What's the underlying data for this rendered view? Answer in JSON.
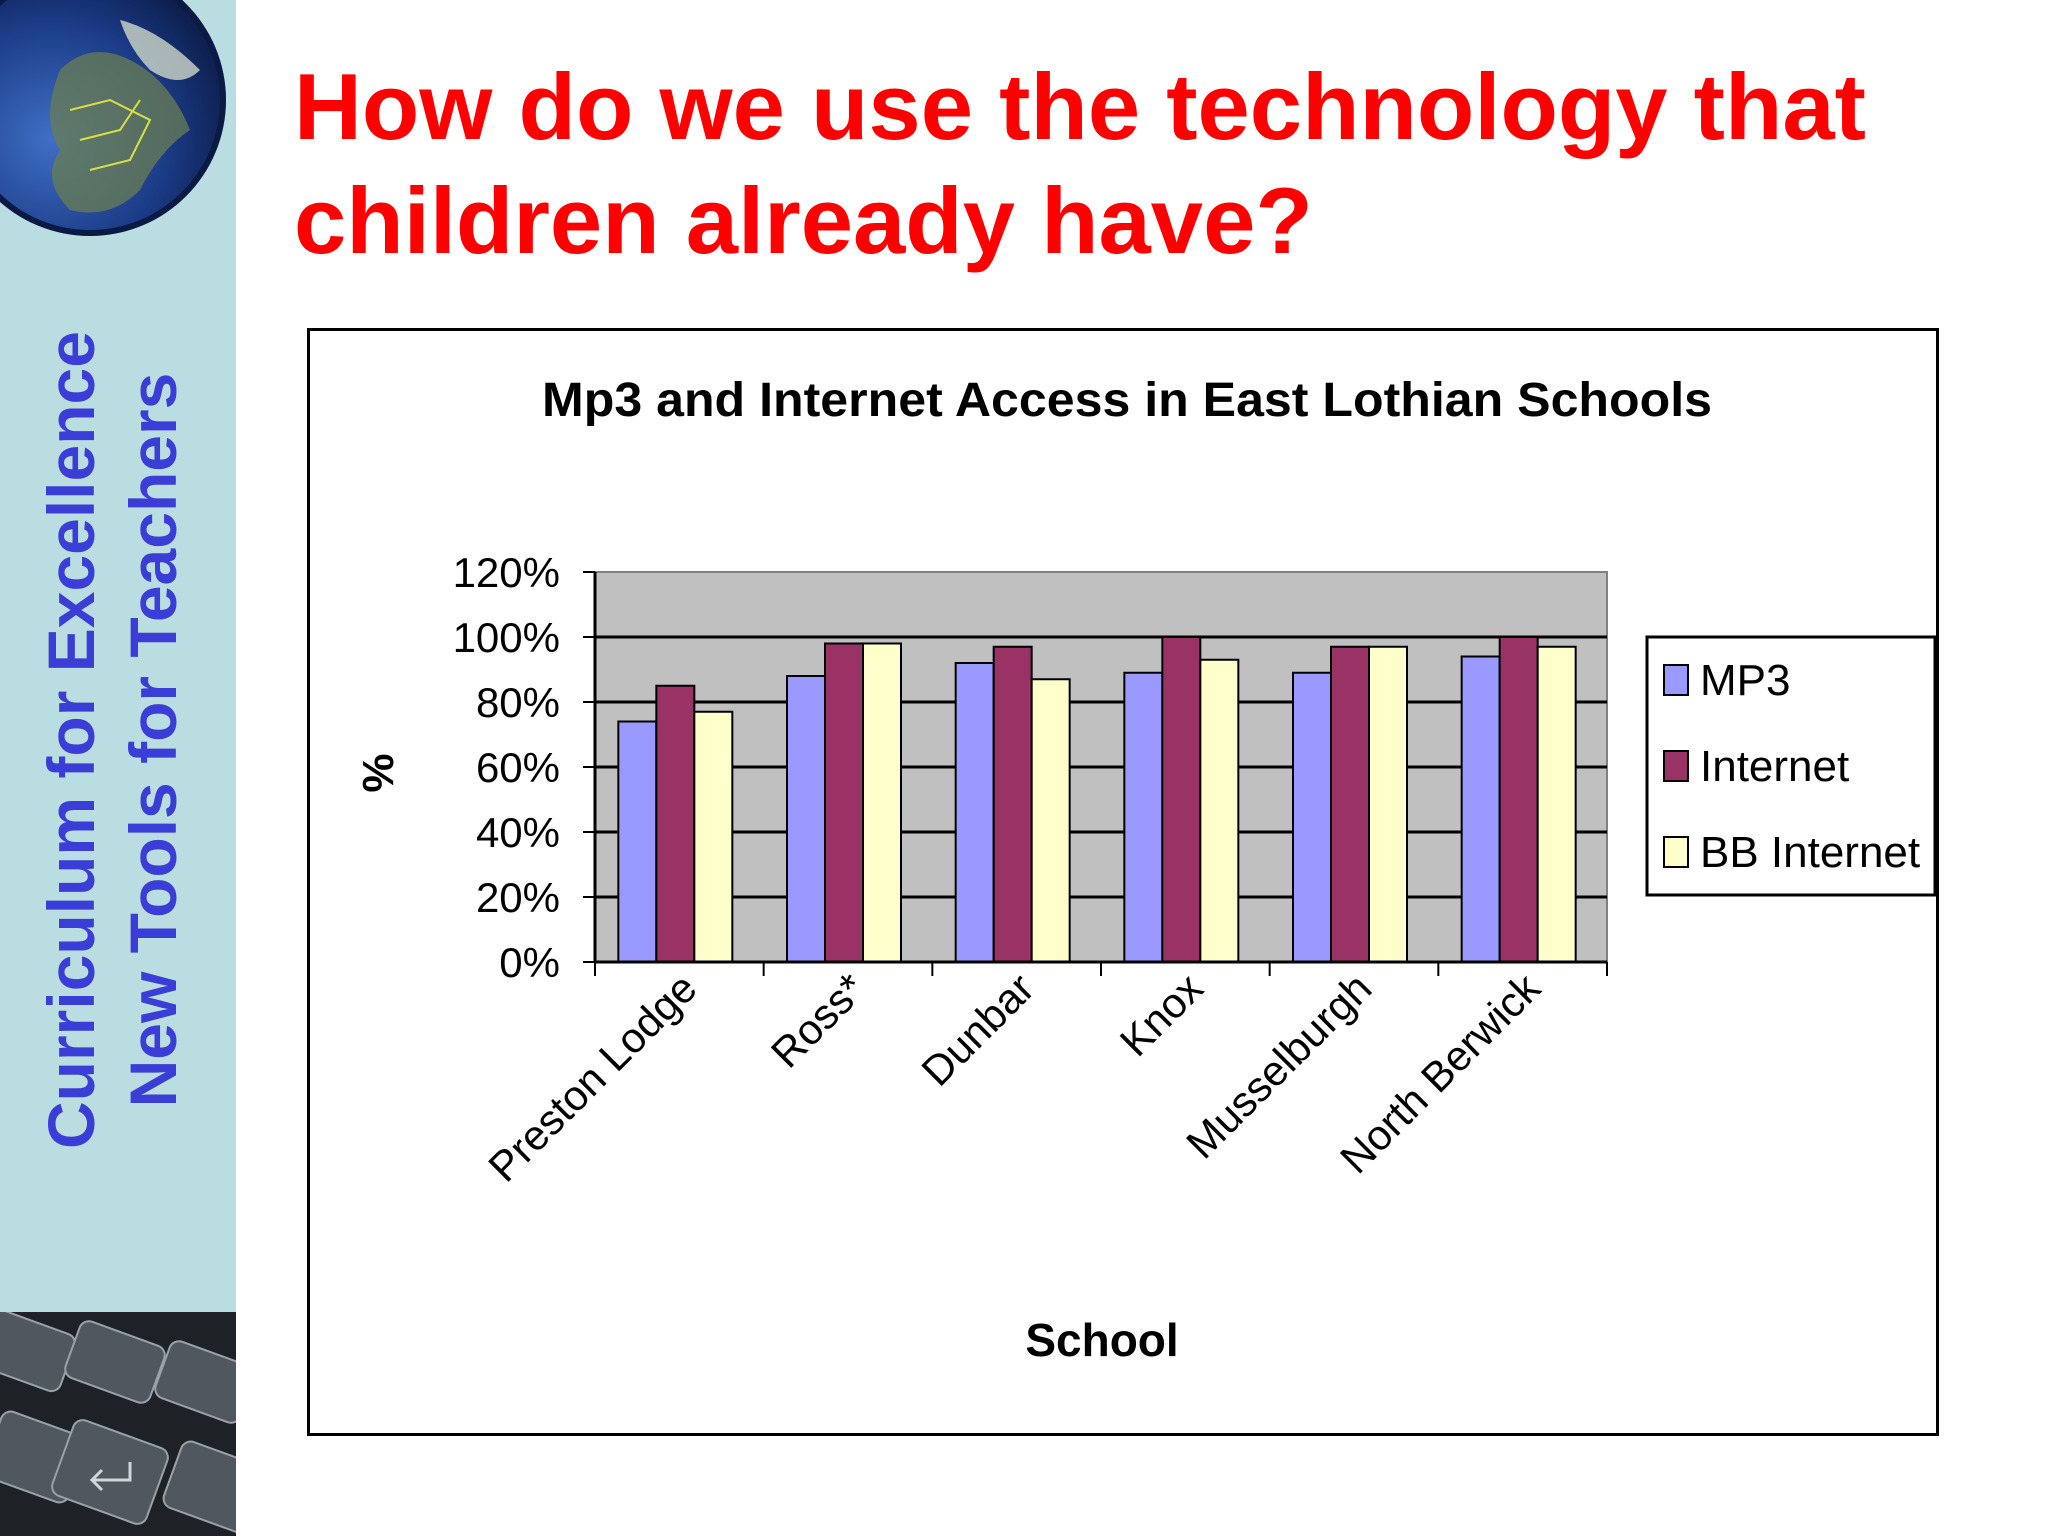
{
  "sidebar": {
    "line1": "Curriculum for Excellence",
    "line2": "New Tools for Teachers"
  },
  "slide": {
    "title_line1": "How do we use the technology that",
    "title_line2": "children already have?"
  },
  "colors": {
    "title": "#ff0000",
    "sidebar_text": "#3b3ed6",
    "sidebar_bg": "#b9dde0",
    "plot_bg": "#c0c0c0",
    "mp3": "#9999ff",
    "internet": "#993366",
    "bb_internet": "#ffffcc"
  },
  "chart_data": {
    "type": "bar",
    "title": "Mp3 and Internet Access in East Lothian Schools",
    "xlabel": "School",
    "ylabel": "%",
    "categories": [
      "Preston Lodge",
      "Ross*",
      "Dunbar",
      "Knox",
      "Musselburgh",
      "North Berwick"
    ],
    "series": [
      {
        "name": "MP3",
        "values": [
          74,
          88,
          92,
          89,
          89,
          94
        ],
        "color": "#9999ff"
      },
      {
        "name": "Internet",
        "values": [
          85,
          98,
          97,
          100,
          97,
          100
        ],
        "color": "#993366"
      },
      {
        "name": "BB Internet",
        "values": [
          77,
          98,
          87,
          93,
          97,
          97
        ],
        "color": "#ffffcc"
      }
    ],
    "yticks": [
      "0%",
      "20%",
      "40%",
      "60%",
      "80%",
      "100%",
      "120%"
    ],
    "ylim": [
      0,
      120
    ],
    "grid": true,
    "legend": "right"
  }
}
